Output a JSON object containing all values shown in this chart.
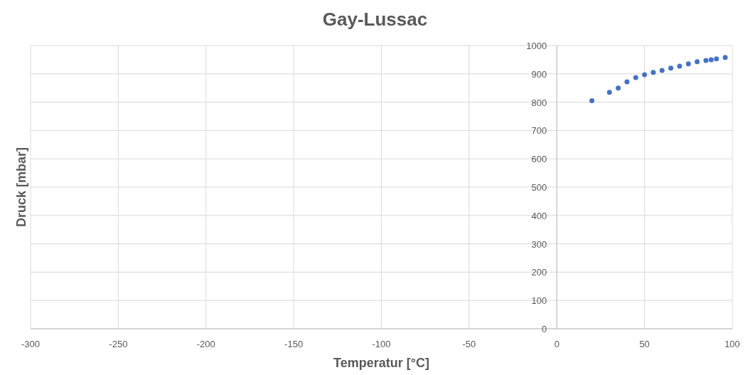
{
  "chart_data": {
    "type": "scatter",
    "title": "Gay-Lussac",
    "xlabel": "Temperatur [°C]",
    "ylabel": "Druck [mbar]",
    "x": [
      20,
      30,
      35,
      40,
      45,
      50,
      55,
      60,
      65,
      70,
      75,
      80,
      85,
      88,
      91,
      96
    ],
    "series": [
      {
        "color": "#4472c4",
        "values": [
          805,
          835,
          850,
          872,
          887,
          897,
          905,
          912,
          920,
          927,
          935,
          943,
          947,
          950,
          953,
          958
        ]
      }
    ],
    "xlim": [
      -300,
      100
    ],
    "xticks": [
      -300,
      -250,
      -200,
      -150,
      -100,
      -50,
      0,
      50,
      100
    ],
    "ylim": [
      0,
      1000
    ],
    "yticks": [
      0,
      100,
      200,
      300,
      400,
      500,
      600,
      700,
      800,
      900,
      1000
    ],
    "grid": true,
    "marker": "circle"
  }
}
